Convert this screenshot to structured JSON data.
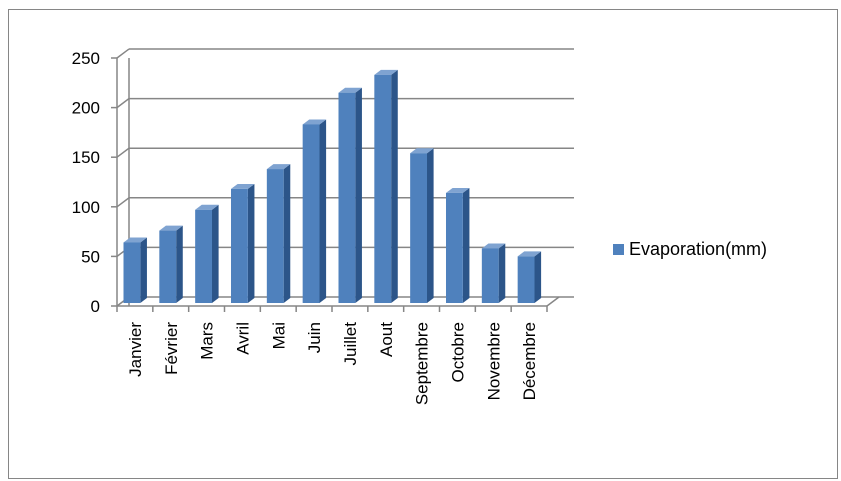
{
  "chart_data": {
    "type": "bar",
    "style": "3d-column",
    "categories": [
      "Janvier",
      "Février",
      "Mars",
      "Avril",
      "Mai",
      "Juin",
      "Juillet",
      "Aout",
      "Septembre",
      "Octobre",
      "Novembre",
      "Décembre"
    ],
    "series": [
      {
        "name": "Evaporation(mm)",
        "values": [
          61,
          73,
          94,
          115,
          135,
          180,
          212,
          230,
          151,
          111,
          55,
          47
        ]
      }
    ],
    "ylim": [
      0,
      250
    ],
    "yticks": [
      0,
      50,
      100,
      150,
      200,
      250
    ],
    "title": "",
    "xlabel": "",
    "ylabel": "",
    "grid": true,
    "legend": "right"
  },
  "colors": {
    "bar_front": "#4F81BD",
    "bar_side": "#2C5589",
    "bar_top": "#7FA3D1",
    "gridline": "#868686",
    "frame": "#868686"
  }
}
